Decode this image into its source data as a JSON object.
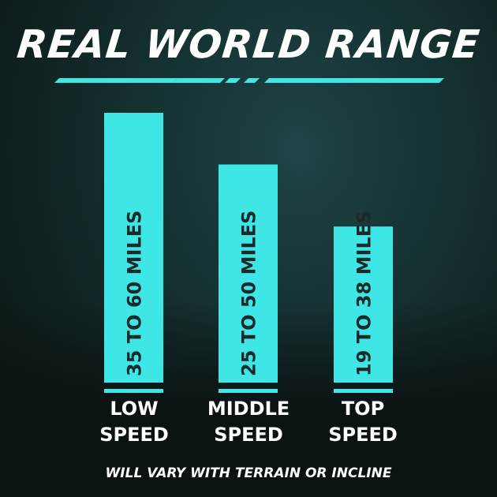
{
  "chart_data": {
    "type": "bar",
    "title": "REAL WORLD RANGE",
    "categories": [
      "LOW SPEED",
      "MIDDLE SPEED",
      "TOP SPEED"
    ],
    "category_lines": [
      [
        "LOW",
        "SPEED"
      ],
      [
        "MIDDLE",
        "SPEED"
      ],
      [
        "TOP",
        "SPEED"
      ]
    ],
    "ranges_miles": [
      [
        35,
        60
      ],
      [
        25,
        50
      ],
      [
        19,
        38
      ]
    ],
    "data_labels": [
      "35 TO 60 MILES",
      "25 TO 50 MILES",
      "19 TO 38 MILES"
    ],
    "footnote": "WILL VARY WITH TERRAIN OR INCLINE",
    "bar_color": "#3ee6e6",
    "label_color": "#1a2a2a",
    "grid": false
  }
}
